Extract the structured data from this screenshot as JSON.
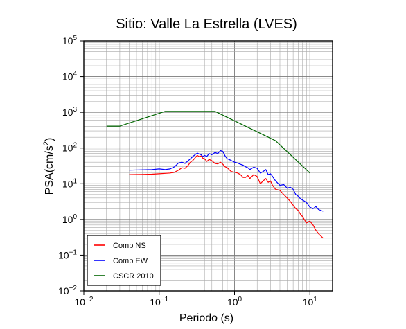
{
  "chart_data": {
    "type": "line",
    "title": "Sitio: Valle La Estrella (LVES)",
    "xlabel": "Periodo (s)",
    "ylabel": "PSA(cm/s",
    "ylabel_sup": "2",
    "ylabel_close": ")",
    "x_scale": "log",
    "y_scale": "log",
    "xlim": [
      0.01,
      20
    ],
    "ylim": [
      0.01,
      100000
    ],
    "grid": true,
    "legend_position": "bottom-left",
    "x_ticks": [
      {
        "base": "10",
        "exp": "−2",
        "value": 0.01
      },
      {
        "base": "10",
        "exp": "−1",
        "value": 0.1
      },
      {
        "base": "10",
        "exp": "0",
        "value": 1
      },
      {
        "base": "10",
        "exp": "1",
        "value": 10
      }
    ],
    "y_ticks": [
      {
        "base": "10",
        "exp": "−2",
        "value": 0.01
      },
      {
        "base": "10",
        "exp": "−1",
        "value": 0.1
      },
      {
        "base": "10",
        "exp": "0",
        "value": 1
      },
      {
        "base": "10",
        "exp": "1",
        "value": 10
      },
      {
        "base": "10",
        "exp": "2",
        "value": 100
      },
      {
        "base": "10",
        "exp": "3",
        "value": 1000
      },
      {
        "base": "10",
        "exp": "4",
        "value": 10000
      },
      {
        "base": "10",
        "exp": "5",
        "value": 100000
      }
    ],
    "series": [
      {
        "name": "Comp NS",
        "color": "#ff0000",
        "x": [
          0.04,
          0.06,
          0.08,
          0.1,
          0.12,
          0.14,
          0.16,
          0.18,
          0.2,
          0.22,
          0.24,
          0.26,
          0.28,
          0.3,
          0.32,
          0.34,
          0.36,
          0.38,
          0.4,
          0.43,
          0.46,
          0.5,
          0.55,
          0.6,
          0.65,
          0.7,
          0.75,
          0.8,
          0.9,
          1.0,
          1.1,
          1.2,
          1.3,
          1.4,
          1.5,
          1.6,
          1.8,
          2.0,
          2.2,
          2.4,
          2.6,
          2.8,
          3.0,
          3.2,
          3.5,
          4.0,
          4.5,
          5.0,
          5.5,
          6.0,
          6.5,
          7.0,
          7.5,
          8.0,
          9.0,
          10.0,
          11.0,
          12.0,
          13.0,
          15.0
        ],
        "y": [
          18,
          18.2,
          18.5,
          19,
          19.5,
          20,
          21,
          24,
          28,
          27,
          32,
          40,
          45,
          53,
          62,
          57,
          60,
          52,
          50,
          42,
          48,
          44,
          37,
          36,
          40,
          35,
          30,
          28,
          22,
          21,
          20,
          18,
          15,
          15,
          17,
          14,
          18,
          16,
          10,
          12,
          14,
          11,
          12,
          9,
          7,
          6.5,
          5,
          4,
          3.2,
          2.5,
          2.0,
          1.8,
          1.4,
          1.2,
          0.8,
          0.9,
          0.7,
          0.5,
          0.4,
          0.3
        ]
      },
      {
        "name": "Comp EW",
        "color": "#0000ff",
        "x": [
          0.04,
          0.06,
          0.08,
          0.1,
          0.12,
          0.14,
          0.16,
          0.18,
          0.2,
          0.22,
          0.24,
          0.26,
          0.28,
          0.3,
          0.32,
          0.34,
          0.36,
          0.38,
          0.4,
          0.43,
          0.46,
          0.5,
          0.55,
          0.6,
          0.65,
          0.7,
          0.75,
          0.8,
          0.9,
          1.0,
          1.1,
          1.2,
          1.3,
          1.4,
          1.5,
          1.6,
          1.8,
          2.0,
          2.2,
          2.4,
          2.6,
          2.8,
          3.0,
          3.2,
          3.5,
          4.0,
          4.5,
          5.0,
          5.5,
          6.0,
          6.5,
          7.0,
          7.5,
          8.0,
          9.0,
          10.0,
          11.0,
          12.0,
          13.0,
          15.0
        ],
        "y": [
          24,
          24.5,
          25,
          26,
          25,
          26,
          30,
          38,
          40,
          37,
          43,
          50,
          58,
          65,
          72,
          68,
          65,
          57,
          62,
          58,
          70,
          65,
          75,
          70,
          85,
          80,
          60,
          50,
          45,
          40,
          38,
          35,
          33,
          30,
          28,
          25,
          29,
          27,
          20,
          22,
          25,
          18,
          19,
          16,
          12,
          9,
          9.5,
          7.5,
          8,
          7,
          5,
          4.5,
          3.8,
          3.5,
          3.0,
          2.2,
          2.0,
          2.3,
          1.9,
          1.7
        ]
      },
      {
        "name": "CSCR 2010",
        "color": "#006600",
        "x": [
          0.02,
          0.03,
          0.12,
          0.55,
          3.5,
          10.0
        ],
        "y": [
          410,
          410,
          1060,
          1060,
          160,
          20
        ]
      }
    ]
  }
}
